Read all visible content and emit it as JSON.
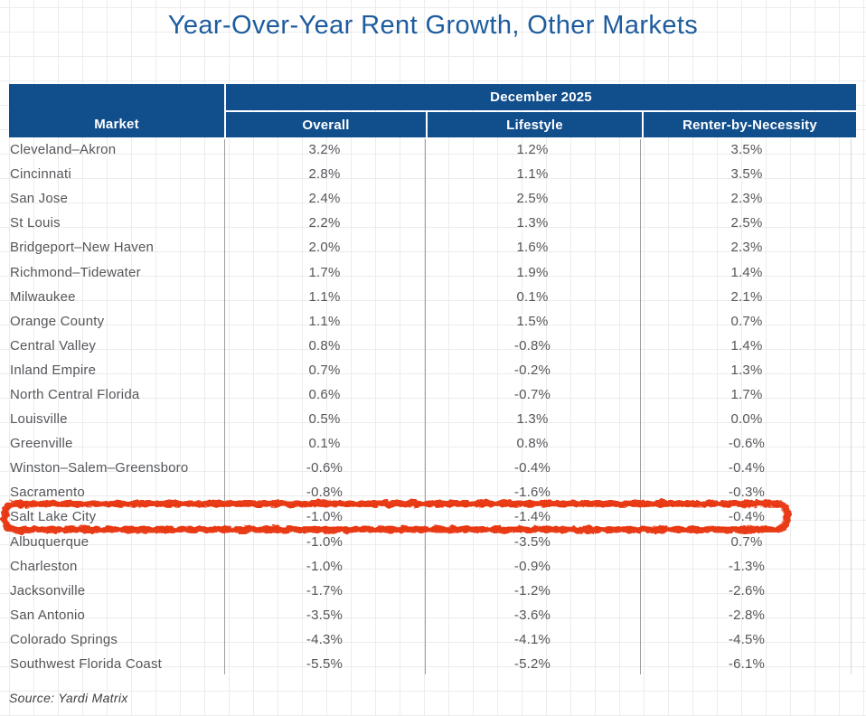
{
  "title": "Year-Over-Year Rent Growth, Other Markets",
  "source_note": "Source: Yardi Matrix",
  "annotation": {
    "type": "hand-drawn red marker box",
    "highlighted_market": "Salt Lake City",
    "color": "#e8340e"
  },
  "colors": {
    "header_bg": "#114e8c",
    "title_text": "#1d5c9e",
    "body_text": "#54565a",
    "highlight_red": "#e8340e",
    "grid_line": "#ececec",
    "column_divider": "#8c8d90"
  },
  "chart_data": {
    "type": "table",
    "title": "Year-Over-Year Rent Growth, Other Markets",
    "group_header": "December 2025",
    "columns": [
      "Market",
      "Overall",
      "Lifestyle",
      "Renter-by-Necessity"
    ],
    "rows": [
      {
        "market": "Cleveland–Akron",
        "overall": "3.2%",
        "lifestyle": "1.2%",
        "rbn": "3.5%",
        "highlight": false
      },
      {
        "market": "Cincinnati",
        "overall": "2.8%",
        "lifestyle": "1.1%",
        "rbn": "3.5%",
        "highlight": false
      },
      {
        "market": "San Jose",
        "overall": "2.4%",
        "lifestyle": "2.5%",
        "rbn": "2.3%",
        "highlight": false
      },
      {
        "market": "St Louis",
        "overall": "2.2%",
        "lifestyle": "1.3%",
        "rbn": "2.5%",
        "highlight": false
      },
      {
        "market": "Bridgeport–New Haven",
        "overall": "2.0%",
        "lifestyle": "1.6%",
        "rbn": "2.3%",
        "highlight": false
      },
      {
        "market": "Richmond–Tidewater",
        "overall": "1.7%",
        "lifestyle": "1.9%",
        "rbn": "1.4%",
        "highlight": false
      },
      {
        "market": "Milwaukee",
        "overall": "1.1%",
        "lifestyle": "0.1%",
        "rbn": "2.1%",
        "highlight": false
      },
      {
        "market": "Orange County",
        "overall": "1.1%",
        "lifestyle": "1.5%",
        "rbn": "0.7%",
        "highlight": false
      },
      {
        "market": "Central Valley",
        "overall": "0.8%",
        "lifestyle": "-0.8%",
        "rbn": "1.4%",
        "highlight": false
      },
      {
        "market": "Inland Empire",
        "overall": "0.7%",
        "lifestyle": "-0.2%",
        "rbn": "1.3%",
        "highlight": false
      },
      {
        "market": "North Central Florida",
        "overall": "0.6%",
        "lifestyle": "-0.7%",
        "rbn": "1.7%",
        "highlight": false
      },
      {
        "market": "Louisville",
        "overall": "0.5%",
        "lifestyle": "1.3%",
        "rbn": "0.0%",
        "highlight": false
      },
      {
        "market": "Greenville",
        "overall": "0.1%",
        "lifestyle": "0.8%",
        "rbn": "-0.6%",
        "highlight": false
      },
      {
        "market": "Winston–Salem–Greensboro",
        "overall": "-0.6%",
        "lifestyle": "-0.4%",
        "rbn": "-0.4%",
        "highlight": false
      },
      {
        "market": "Sacramento",
        "overall": "-0.8%",
        "lifestyle": "-1.6%",
        "rbn": "-0.3%",
        "highlight": false
      },
      {
        "market": "Salt Lake City",
        "overall": "-1.0%",
        "lifestyle": "-1.4%",
        "rbn": "-0.4%",
        "highlight": true
      },
      {
        "market": "Albuquerque",
        "overall": "-1.0%",
        "lifestyle": "-3.5%",
        "rbn": "0.7%",
        "highlight": false
      },
      {
        "market": "Charleston",
        "overall": "-1.0%",
        "lifestyle": "-0.9%",
        "rbn": "-1.3%",
        "highlight": false
      },
      {
        "market": "Jacksonville",
        "overall": "-1.7%",
        "lifestyle": "-1.2%",
        "rbn": "-2.6%",
        "highlight": false
      },
      {
        "market": "San Antonio",
        "overall": "-3.5%",
        "lifestyle": "-3.6%",
        "rbn": "-2.8%",
        "highlight": false
      },
      {
        "market": "Colorado Springs",
        "overall": "-4.3%",
        "lifestyle": "-4.1%",
        "rbn": "-4.5%",
        "highlight": false
      },
      {
        "market": "Southwest Florida Coast",
        "overall": "-5.5%",
        "lifestyle": "-5.2%",
        "rbn": "-6.1%",
        "highlight": false
      }
    ]
  }
}
